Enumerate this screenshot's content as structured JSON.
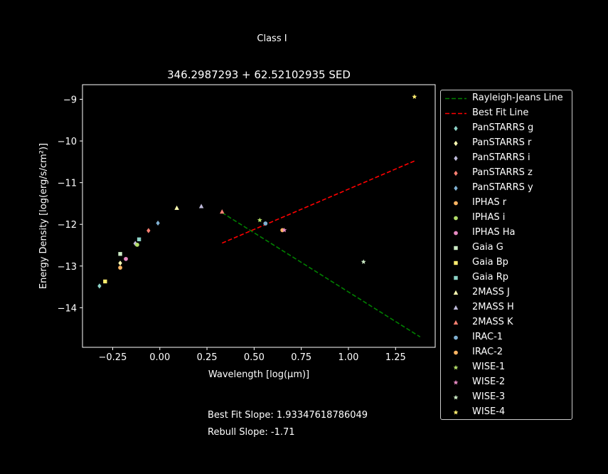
{
  "figure": {
    "suptitle": "Class I",
    "notes": [
      "Best Fit Slope: 1.93347618786049",
      "Rebull Slope: -1.71"
    ]
  },
  "chart_data": {
    "type": "scatter",
    "title": "346.2987293 + 62.52102935 SED",
    "xlabel": "Wavelength [log(μm)]",
    "ylabel": "Energy Density [log(erg/s/cm²)]",
    "xlim": [
      -0.41,
      1.46
    ],
    "ylim": [
      -14.95,
      -8.65
    ],
    "xticks": [
      -0.25,
      0.0,
      0.25,
      0.5,
      0.75,
      1.0,
      1.25
    ],
    "xtick_labels": [
      "−0.25",
      "0.00",
      "0.25",
      "0.50",
      "0.75",
      "1.00",
      "1.25"
    ],
    "yticks": [
      -14,
      -13,
      -12,
      -11,
      -10,
      -9
    ],
    "ytick_labels": [
      "−14",
      "−13",
      "−12",
      "−11",
      "−10",
      "−9"
    ],
    "grid": false,
    "legend_position": "outside-right",
    "lines": [
      {
        "name": "Rayleigh-Jeans Line",
        "color": "#008000",
        "dash": "dashed",
        "x": [
          0.33,
          1.38
        ],
        "y": [
          -11.72,
          -14.7
        ]
      },
      {
        "name": "Best Fit Line",
        "color": "#ff0000",
        "dash": "dashed",
        "x": [
          0.33,
          1.35
        ],
        "y": [
          -12.45,
          -10.48
        ]
      }
    ],
    "series": [
      {
        "name": "PanSTARRS g",
        "marker": "diamond",
        "color": "#8dd3c7",
        "x": [
          -0.32
        ],
        "y": [
          -13.48
        ]
      },
      {
        "name": "PanSTARRS r",
        "marker": "diamond",
        "color": "#ffffb3",
        "x": [
          -0.21
        ],
        "y": [
          -12.93
        ]
      },
      {
        "name": "PanSTARRS i",
        "marker": "diamond",
        "color": "#bebada",
        "x": [
          -0.13
        ],
        "y": [
          -12.46
        ]
      },
      {
        "name": "PanSTARRS z",
        "marker": "diamond",
        "color": "#fb8072",
        "x": [
          -0.06
        ],
        "y": [
          -12.15
        ]
      },
      {
        "name": "PanSTARRS y",
        "marker": "diamond",
        "color": "#80b1d3",
        "x": [
          -0.01
        ],
        "y": [
          -11.97
        ]
      },
      {
        "name": "IPHAS r",
        "marker": "circle",
        "color": "#fdb462",
        "x": [
          -0.21
        ],
        "y": [
          -13.04
        ]
      },
      {
        "name": "IPHAS i",
        "marker": "circle",
        "color": "#b3de69",
        "x": [
          -0.12
        ],
        "y": [
          -12.49
        ]
      },
      {
        "name": "IPHAS Ha",
        "marker": "circle",
        "color": "#e78ac3",
        "x": [
          -0.18
        ],
        "y": [
          -12.83
        ]
      },
      {
        "name": "Gaia G",
        "marker": "square",
        "color": "#ccebc5",
        "x": [
          -0.21
        ],
        "y": [
          -12.71
        ]
      },
      {
        "name": "Gaia Bp",
        "marker": "square",
        "color": "#ffed6f",
        "x": [
          -0.29
        ],
        "y": [
          -13.37
        ]
      },
      {
        "name": "Gaia Rp",
        "marker": "square",
        "color": "#8dd3c7",
        "x": [
          -0.11
        ],
        "y": [
          -12.36
        ]
      },
      {
        "name": "2MASS J",
        "marker": "triangle",
        "color": "#ffffb3",
        "x": [
          0.09
        ],
        "y": [
          -11.61
        ]
      },
      {
        "name": "2MASS H",
        "marker": "triangle",
        "color": "#bebada",
        "x": [
          0.22
        ],
        "y": [
          -11.57
        ]
      },
      {
        "name": "2MASS K",
        "marker": "triangle",
        "color": "#fb8072",
        "x": [
          0.33
        ],
        "y": [
          -11.7
        ]
      },
      {
        "name": "IRAC-1",
        "marker": "circle",
        "color": "#80b1d3",
        "x": [
          0.56
        ],
        "y": [
          -11.98
        ]
      },
      {
        "name": "IRAC-2",
        "marker": "circle",
        "color": "#fdb462",
        "x": [
          0.65
        ],
        "y": [
          -12.14
        ]
      },
      {
        "name": "WISE-1",
        "marker": "star",
        "color": "#b3de69",
        "x": [
          0.53
        ],
        "y": [
          -11.9
        ]
      },
      {
        "name": "WISE-2",
        "marker": "star",
        "color": "#e78ac3",
        "x": [
          0.66
        ],
        "y": [
          -12.14
        ]
      },
      {
        "name": "WISE-3",
        "marker": "star",
        "color": "#ccebc5",
        "x": [
          1.08
        ],
        "y": [
          -12.9
        ]
      },
      {
        "name": "WISE-4",
        "marker": "star",
        "color": "#ffed6f",
        "x": [
          1.35
        ],
        "y": [
          -8.94
        ]
      }
    ]
  }
}
